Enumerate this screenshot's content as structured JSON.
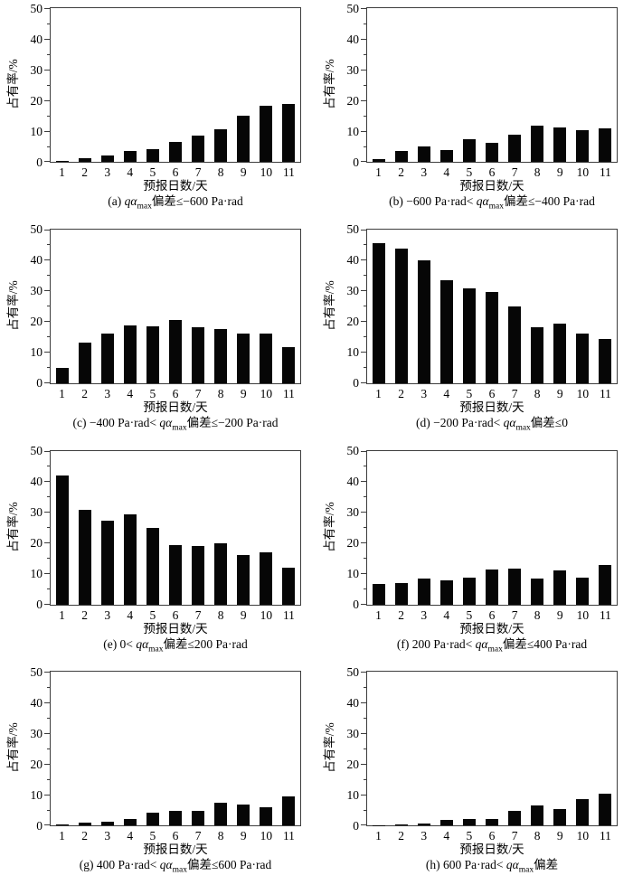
{
  "figure": {
    "background": "#ffffff",
    "bar_color": "#060606",
    "axis_color": "#3d3d3d",
    "layout": "2 columns x 4 rows of bar charts"
  },
  "chart_data": [
    {
      "type": "bar",
      "panel": "a",
      "caption_pre": "(a) ",
      "caption_var": "qα",
      "caption_sub": "max",
      "caption_post": "偏差≤−600 Pa·rad",
      "categories": [
        "1",
        "2",
        "3",
        "4",
        "5",
        "6",
        "7",
        "8",
        "9",
        "10",
        "11"
      ],
      "values": [
        0.4,
        1.3,
        2.0,
        3.4,
        4.0,
        6.5,
        8.4,
        10.6,
        14.9,
        18.1,
        18.8
      ],
      "xlabel": "预报日数/天",
      "ylabel": "占有率/%",
      "ylim": [
        0,
        50
      ],
      "yticks": [
        0,
        10,
        20,
        30,
        40,
        50
      ],
      "yticks_minor": [
        5,
        15,
        25,
        35,
        45
      ],
      "grid": false,
      "legend": "none"
    },
    {
      "type": "bar",
      "panel": "b",
      "caption_pre": "(b) −600 Pa·rad< ",
      "caption_var": "qα",
      "caption_sub": "max",
      "caption_post": "偏差≤−400 Pa·rad",
      "categories": [
        "1",
        "2",
        "3",
        "4",
        "5",
        "6",
        "7",
        "8",
        "9",
        "10",
        "11"
      ],
      "values": [
        0.8,
        3.4,
        5.0,
        3.7,
        7.4,
        6.3,
        8.9,
        11.8,
        11.2,
        10.4,
        11.0
      ],
      "xlabel": "预报日数/天",
      "ylabel": "占有率/%",
      "ylim": [
        0,
        50
      ],
      "yticks": [
        0,
        10,
        20,
        30,
        40,
        50
      ],
      "yticks_minor": [
        5,
        15,
        25,
        35,
        45
      ],
      "grid": false,
      "legend": "none"
    },
    {
      "type": "bar",
      "panel": "c",
      "caption_pre": "(c) −400 Pa·rad< ",
      "caption_var": "qα",
      "caption_sub": "max",
      "caption_post": "偏差≤−200 Pa·rad",
      "categories": [
        "1",
        "2",
        "3",
        "4",
        "5",
        "6",
        "7",
        "8",
        "9",
        "10",
        "11"
      ],
      "values": [
        4.8,
        13.3,
        16.0,
        18.7,
        18.5,
        20.4,
        18.2,
        17.6,
        16.2,
        16.2,
        11.8
      ],
      "xlabel": "预报日数/天",
      "ylabel": "占有率/%",
      "ylim": [
        0,
        50
      ],
      "yticks": [
        0,
        10,
        20,
        30,
        40,
        50
      ],
      "yticks_minor": [
        5,
        15,
        25,
        35,
        45
      ],
      "grid": false,
      "legend": "none"
    },
    {
      "type": "bar",
      "panel": "d",
      "caption_pre": "(d) −200 Pa·rad< ",
      "caption_var": "qα",
      "caption_sub": "max",
      "caption_post": "偏差≤0",
      "categories": [
        "1",
        "2",
        "3",
        "4",
        "5",
        "6",
        "7",
        "8",
        "9",
        "10",
        "11"
      ],
      "values": [
        45.4,
        43.7,
        39.8,
        33.6,
        30.8,
        29.6,
        24.9,
        18.3,
        19.3,
        16.0,
        14.2
      ],
      "xlabel": "预报日数/天",
      "ylabel": "占有率/%",
      "ylim": [
        0,
        50
      ],
      "yticks": [
        0,
        10,
        20,
        30,
        40,
        50
      ],
      "yticks_minor": [
        5,
        15,
        25,
        35,
        45
      ],
      "grid": false,
      "legend": "none"
    },
    {
      "type": "bar",
      "panel": "e",
      "caption_pre": "(e) 0< ",
      "caption_var": "qα",
      "caption_sub": "max",
      "caption_post": "偏差≤200 Pa·rad",
      "categories": [
        "1",
        "2",
        "3",
        "4",
        "5",
        "6",
        "7",
        "8",
        "9",
        "10",
        "11"
      ],
      "values": [
        41.9,
        30.7,
        27.3,
        29.4,
        24.8,
        19.4,
        19.1,
        19.8,
        16.0,
        16.8,
        11.8
      ],
      "xlabel": "预报日数/天",
      "ylabel": "占有率/%",
      "ylim": [
        0,
        50
      ],
      "yticks": [
        0,
        10,
        20,
        30,
        40,
        50
      ],
      "yticks_minor": [
        5,
        15,
        25,
        35,
        45
      ],
      "grid": false,
      "legend": "none"
    },
    {
      "type": "bar",
      "panel": "f",
      "caption_pre": "(f) 200 Pa·rad< ",
      "caption_var": "qα",
      "caption_sub": "max",
      "caption_post": "偏差≤400 Pa·rad",
      "categories": [
        "1",
        "2",
        "3",
        "4",
        "5",
        "6",
        "7",
        "8",
        "9",
        "10",
        "11"
      ],
      "values": [
        6.7,
        6.9,
        8.5,
        7.8,
        8.8,
        11.2,
        11.7,
        8.5,
        11.1,
        8.6,
        12.8
      ],
      "xlabel": "预报日数/天",
      "ylabel": "占有率/%",
      "ylim": [
        0,
        50
      ],
      "yticks": [
        0,
        10,
        20,
        30,
        40,
        50
      ],
      "yticks_minor": [
        5,
        15,
        25,
        35,
        45
      ],
      "grid": false,
      "legend": "none"
    },
    {
      "type": "bar",
      "panel": "g",
      "caption_pre": "(g) 400 Pa·rad< ",
      "caption_var": "qα",
      "caption_sub": "max",
      "caption_post": "偏差≤600 Pa·rad",
      "categories": [
        "1",
        "2",
        "3",
        "4",
        "5",
        "6",
        "7",
        "8",
        "9",
        "10",
        "11"
      ],
      "values": [
        0.3,
        1.0,
        1.3,
        2.2,
        4.2,
        4.9,
        4.7,
        7.4,
        6.7,
        6.1,
        9.5
      ],
      "xlabel": "预报日数/天",
      "ylabel": "占有率/%",
      "ylim": [
        0,
        50
      ],
      "yticks": [
        0,
        10,
        20,
        30,
        40,
        50
      ],
      "yticks_minor": [
        5,
        15,
        25,
        35,
        45
      ],
      "grid": false,
      "legend": "none"
    },
    {
      "type": "bar",
      "panel": "h",
      "caption_pre": "(h) 600 Pa·rad< ",
      "caption_var": "qα",
      "caption_sub": "max",
      "caption_post": "偏差",
      "categories": [
        "1",
        "2",
        "3",
        "4",
        "5",
        "6",
        "7",
        "8",
        "9",
        "10",
        "11"
      ],
      "values": [
        0.1,
        0.3,
        0.8,
        1.9,
        2.1,
        2.2,
        4.7,
        6.5,
        5.5,
        8.5,
        10.4
      ],
      "xlabel": "预报日数/天",
      "ylabel": "占有率/%",
      "ylim": [
        0,
        50
      ],
      "yticks": [
        0,
        10,
        20,
        30,
        40,
        50
      ],
      "yticks_minor": [
        5,
        15,
        25,
        35,
        45
      ],
      "grid": false,
      "legend": "none"
    }
  ]
}
